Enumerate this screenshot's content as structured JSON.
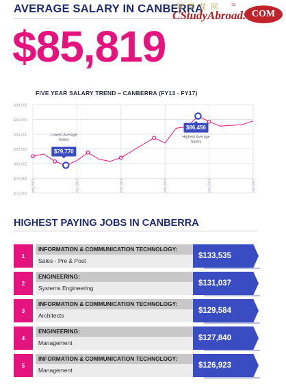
{
  "header": {
    "title": "AVERAGE SALARY IN CANBERRA",
    "average_salary": "$85,819"
  },
  "watermark": {
    "chinese": "留 学 益 网",
    "brand": "CStudyAbroad.",
    "suffix": "COM"
  },
  "chart_data": {
    "type": "line",
    "title": "FIVE YEAR SALARY TREND – CANBERRA (FY13 - FY17)",
    "x_tick_labels": [
      "July 2012",
      "July 2013",
      "July 2014",
      "July 2015",
      "July 2016",
      "July 2017"
    ],
    "y_tick_labels": [
      "$88,000",
      "$86,000",
      "$84,000",
      "$82,000",
      "$80,000",
      "$78,000",
      "$76,000"
    ],
    "ylim": [
      76000,
      88000
    ],
    "grid": true,
    "line_color": "#e5137d",
    "series": [
      {
        "x": [
          "2012-07",
          "2012-10",
          "2013-01",
          "2013-04",
          "2013-07",
          "2013-10",
          "2014-01",
          "2014-04",
          "2014-07",
          "2014-10",
          "2015-01",
          "2015-04",
          "2015-07",
          "2015-10",
          "2016-01",
          "2016-04",
          "2016-07",
          "2016-10",
          "2017-01",
          "2017-04",
          "2017-07"
        ],
        "values": [
          81000,
          81300,
          80300,
          79770,
          80400,
          81500,
          80600,
          80300,
          80800,
          81700,
          82600,
          83500,
          82800,
          84800,
          85000,
          86456,
          85700,
          85100,
          85200,
          85300,
          85800
        ]
      }
    ],
    "annotations": [
      {
        "label": "Lowest Average Salary",
        "value_text": "$79,770",
        "x": "2013-04",
        "y": 79770
      },
      {
        "label": "Highest Average Salary",
        "value_text": "$86,456",
        "x": "2016-04",
        "y": 86456
      }
    ]
  },
  "jobs_section": {
    "title": "HIGHEST PAYING JOBS IN CANBERRA",
    "items": [
      {
        "rank": "1",
        "category": "INFORMATION & COMMUNICATION TECHNOLOGY:",
        "role": "Sales - Pre & Post",
        "salary": "$133,535"
      },
      {
        "rank": "2",
        "category": "ENGINEERING:",
        "role": "Systems Engineering",
        "salary": "$131,037"
      },
      {
        "rank": "3",
        "category": "INFORMATION & COMMUNICATION TECHNOLOGY:",
        "role": "Architects",
        "salary": "$129,584"
      },
      {
        "rank": "4",
        "category": "ENGINEERING:",
        "role": "Management",
        "salary": "$127,840"
      },
      {
        "rank": "5",
        "category": "INFORMATION & COMMUNICATION TECHNOLOGY:",
        "role": "Management",
        "salary": "$126,923"
      }
    ]
  },
  "colors": {
    "accent_pink": "#e5137d",
    "navy": "#1e2a6e",
    "salary_blue": "#3a4cc1"
  }
}
